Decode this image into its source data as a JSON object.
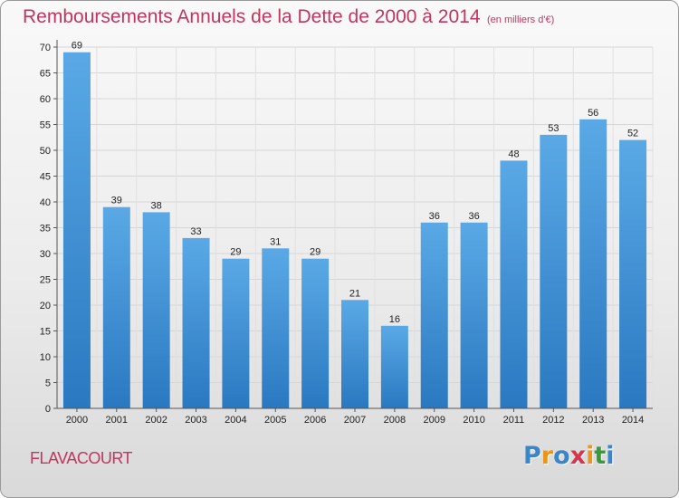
{
  "header": {
    "title": "Remboursements Annuels de la Dette de 2000 à 2014",
    "subtitle": "(en milliers d'€)"
  },
  "footer": {
    "commune": "FLAVACOURT",
    "logo_letters": [
      {
        "char": "P",
        "color": "#3a86c8"
      },
      {
        "char": "r",
        "color": "#e8961e"
      },
      {
        "char": "o",
        "color": "#3a86c8"
      },
      {
        "char": "x",
        "color": "#d8344e"
      },
      {
        "char": "i",
        "color": "#e8961e"
      },
      {
        "char": "t",
        "color": "#3a9a3a"
      },
      {
        "char": "i",
        "color": "#3a86c8"
      }
    ]
  },
  "colors": {
    "accent": "#c0365f",
    "bar_top": "#5aa9e6",
    "bar_bottom": "#2a78c0"
  },
  "chart_data": {
    "type": "bar",
    "title": "Remboursements Annuels de la Dette de 2000 à 2014",
    "subtitle": "(en milliers d'€)",
    "categories": [
      "2000",
      "2001",
      "2002",
      "2003",
      "2004",
      "2005",
      "2006",
      "2007",
      "2008",
      "2009",
      "2010",
      "2011",
      "2012",
      "2013",
      "2014"
    ],
    "values": [
      69,
      39,
      38,
      33,
      29,
      31,
      29,
      21,
      16,
      36,
      36,
      48,
      53,
      56,
      52
    ],
    "ylim": [
      0,
      70
    ],
    "yticks": [
      0,
      5,
      10,
      15,
      20,
      25,
      30,
      35,
      40,
      45,
      50,
      55,
      60,
      65,
      70
    ],
    "grid": true,
    "legend": "none"
  }
}
